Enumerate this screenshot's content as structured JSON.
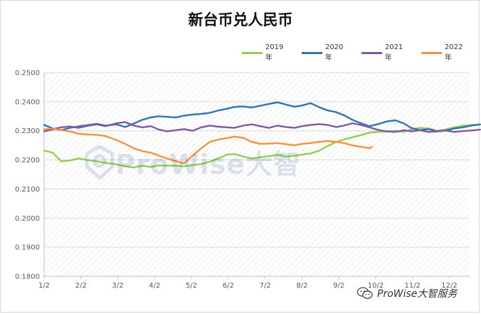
{
  "chart_data": {
    "type": "line",
    "title": "新台币兑人民币",
    "xlabel": "",
    "ylabel": "",
    "x_tick_labels": [
      "1/2",
      "2/2",
      "3/2",
      "4/2",
      "5/2",
      "6/2",
      "7/2",
      "8/2",
      "9/2",
      "10/2",
      "11/2",
      "12/2"
    ],
    "y_tick_labels": [
      "0.1800",
      "0.1900",
      "0.2000",
      "0.2100",
      "0.2200",
      "0.2300",
      "0.2400",
      "0.2500"
    ],
    "ylim": [
      0.18,
      0.25
    ],
    "grid": true,
    "legend_position": "top-right",
    "series": [
      {
        "name": "2019年",
        "color": "#92d050",
        "x": [
          "1/2",
          "1/9",
          "1/16",
          "1/23",
          "1/30",
          "2/8",
          "2/15",
          "2/22",
          "3/1",
          "3/8",
          "3/15",
          "3/22",
          "3/29",
          "4/5",
          "4/12",
          "4/19",
          "4/26",
          "5/3",
          "5/10",
          "5/17",
          "5/24",
          "5/31",
          "6/7",
          "6/14",
          "6/21",
          "6/28",
          "7/5",
          "7/12",
          "7/19",
          "7/26",
          "8/2",
          "8/9",
          "8/16",
          "8/23",
          "8/30",
          "9/6",
          "9/13",
          "9/20",
          "9/27",
          "10/4",
          "10/11",
          "10/18",
          "10/25",
          "11/1",
          "11/8",
          "11/15",
          "11/22",
          "11/29",
          "12/6",
          "12/13",
          "12/20",
          "12/27"
        ],
        "y": [
          0.2232,
          0.2225,
          0.2195,
          0.2198,
          0.2205,
          0.2199,
          0.2195,
          0.219,
          0.2185,
          0.2178,
          0.2174,
          0.218,
          0.2176,
          0.2181,
          0.218,
          0.218,
          0.2178,
          0.2182,
          0.2186,
          0.2194,
          0.2205,
          0.2218,
          0.222,
          0.2212,
          0.2205,
          0.2209,
          0.2213,
          0.2217,
          0.2212,
          0.2214,
          0.2218,
          0.2222,
          0.2232,
          0.2248,
          0.2262,
          0.227,
          0.2278,
          0.2285,
          0.2294,
          0.2296,
          0.2298,
          0.23,
          0.2296,
          0.2305,
          0.231,
          0.2308,
          0.23,
          0.2305,
          0.2312,
          0.2318,
          0.232,
          0.2321
        ]
      },
      {
        "name": "2020年",
        "color": "#2e75b6",
        "x": [
          "1/2",
          "1/9",
          "1/16",
          "1/23",
          "1/30",
          "2/8",
          "2/15",
          "2/22",
          "3/1",
          "3/8",
          "3/15",
          "3/22",
          "3/29",
          "4/5",
          "4/12",
          "4/19",
          "4/26",
          "5/3",
          "5/10",
          "5/17",
          "5/24",
          "5/31",
          "6/7",
          "6/14",
          "6/21",
          "6/28",
          "7/5",
          "7/12",
          "7/19",
          "7/26",
          "8/2",
          "8/9",
          "8/16",
          "8/23",
          "8/30",
          "9/6",
          "9/13",
          "9/20",
          "9/27",
          "10/4",
          "10/11",
          "10/18",
          "10/25",
          "11/1",
          "11/8",
          "11/15",
          "11/22",
          "11/29",
          "12/6",
          "12/13",
          "12/20",
          "12/27"
        ],
        "y": [
          0.232,
          0.2308,
          0.2302,
          0.231,
          0.2315,
          0.232,
          0.2324,
          0.2318,
          0.2322,
          0.2313,
          0.2325,
          0.2338,
          0.2346,
          0.235,
          0.2348,
          0.2346,
          0.2352,
          0.2356,
          0.2358,
          0.2362,
          0.237,
          0.2376,
          0.2382,
          0.2384,
          0.238,
          0.2386,
          0.2392,
          0.2398,
          0.239,
          0.2383,
          0.2387,
          0.2395,
          0.2381,
          0.237,
          0.2364,
          0.2354,
          0.2338,
          0.2326,
          0.2316,
          0.2323,
          0.2332,
          0.2336,
          0.2325,
          0.231,
          0.2302,
          0.2306,
          0.2298,
          0.2301,
          0.2308,
          0.2312,
          0.2318,
          0.2322
        ]
      },
      {
        "name": "2021年",
        "color": "#7e5aa2",
        "x": [
          "1/2",
          "1/9",
          "1/16",
          "1/23",
          "1/30",
          "2/8",
          "2/15",
          "2/22",
          "3/1",
          "3/8",
          "3/15",
          "3/22",
          "3/29",
          "4/5",
          "4/12",
          "4/19",
          "4/26",
          "5/3",
          "5/10",
          "5/17",
          "5/24",
          "5/31",
          "6/7",
          "6/14",
          "6/21",
          "6/28",
          "7/5",
          "7/12",
          "7/19",
          "7/26",
          "8/2",
          "8/9",
          "8/16",
          "8/23",
          "8/30",
          "9/6",
          "9/13",
          "9/20",
          "9/27",
          "10/4",
          "10/11",
          "10/18",
          "10/25",
          "11/1",
          "11/8",
          "11/15",
          "11/22",
          "11/29",
          "12/6",
          "12/13",
          "12/20",
          "12/27"
        ],
        "y": [
          0.2298,
          0.2305,
          0.2312,
          0.2315,
          0.231,
          0.2318,
          0.2322,
          0.2316,
          0.2326,
          0.233,
          0.2318,
          0.2312,
          0.2316,
          0.2305,
          0.2298,
          0.2302,
          0.2306,
          0.23,
          0.2312,
          0.2318,
          0.2314,
          0.2312,
          0.231,
          0.2318,
          0.2322,
          0.2316,
          0.231,
          0.2318,
          0.2313,
          0.231,
          0.2316,
          0.232,
          0.2323,
          0.232,
          0.2313,
          0.2318,
          0.2326,
          0.232,
          0.2312,
          0.2303,
          0.2298,
          0.2296,
          0.2302,
          0.2298,
          0.2302,
          0.2296,
          0.2298,
          0.2301,
          0.2296,
          0.2299,
          0.2301,
          0.2304
        ]
      },
      {
        "name": "2022年",
        "color": "#f5923e",
        "x": [
          "1/2",
          "1/9",
          "1/16",
          "1/23",
          "1/30",
          "2/8",
          "2/15",
          "2/22",
          "3/1",
          "3/8",
          "3/15",
          "3/22",
          "3/29",
          "4/5",
          "4/12",
          "4/19",
          "4/26",
          "5/3",
          "5/10",
          "5/17",
          "5/24",
          "5/31",
          "6/7",
          "6/14",
          "6/21",
          "6/28",
          "7/5",
          "7/12",
          "7/19",
          "7/26",
          "8/2",
          "8/9",
          "8/16",
          "8/23",
          "8/30",
          "9/6",
          "9/13",
          "9/20",
          "9/27",
          "9/29"
        ],
        "y": [
          0.2305,
          0.2308,
          0.2302,
          0.2298,
          0.229,
          0.2287,
          0.2286,
          0.2282,
          0.2268,
          0.2255,
          0.224,
          0.223,
          0.2225,
          0.2215,
          0.2205,
          0.2196,
          0.2188,
          0.2215,
          0.224,
          0.2262,
          0.227,
          0.2275,
          0.228,
          0.2276,
          0.2262,
          0.2255,
          0.2256,
          0.2258,
          0.2254,
          0.225,
          0.2255,
          0.2258,
          0.2262,
          0.2265,
          0.2262,
          0.2258,
          0.225,
          0.2245,
          0.224,
          0.2245
        ]
      }
    ]
  },
  "watermark": {
    "text": "ProWise大智",
    "icon": "prowise-logo-icon"
  },
  "footer_brand": {
    "text": "ProWise大智服务",
    "icon": "wechat-icon"
  },
  "colors": {
    "axis": "#bfbfbf",
    "grid": "#d9d9d9",
    "tick_text": "#595959",
    "hatch": "#e0e0e0"
  }
}
